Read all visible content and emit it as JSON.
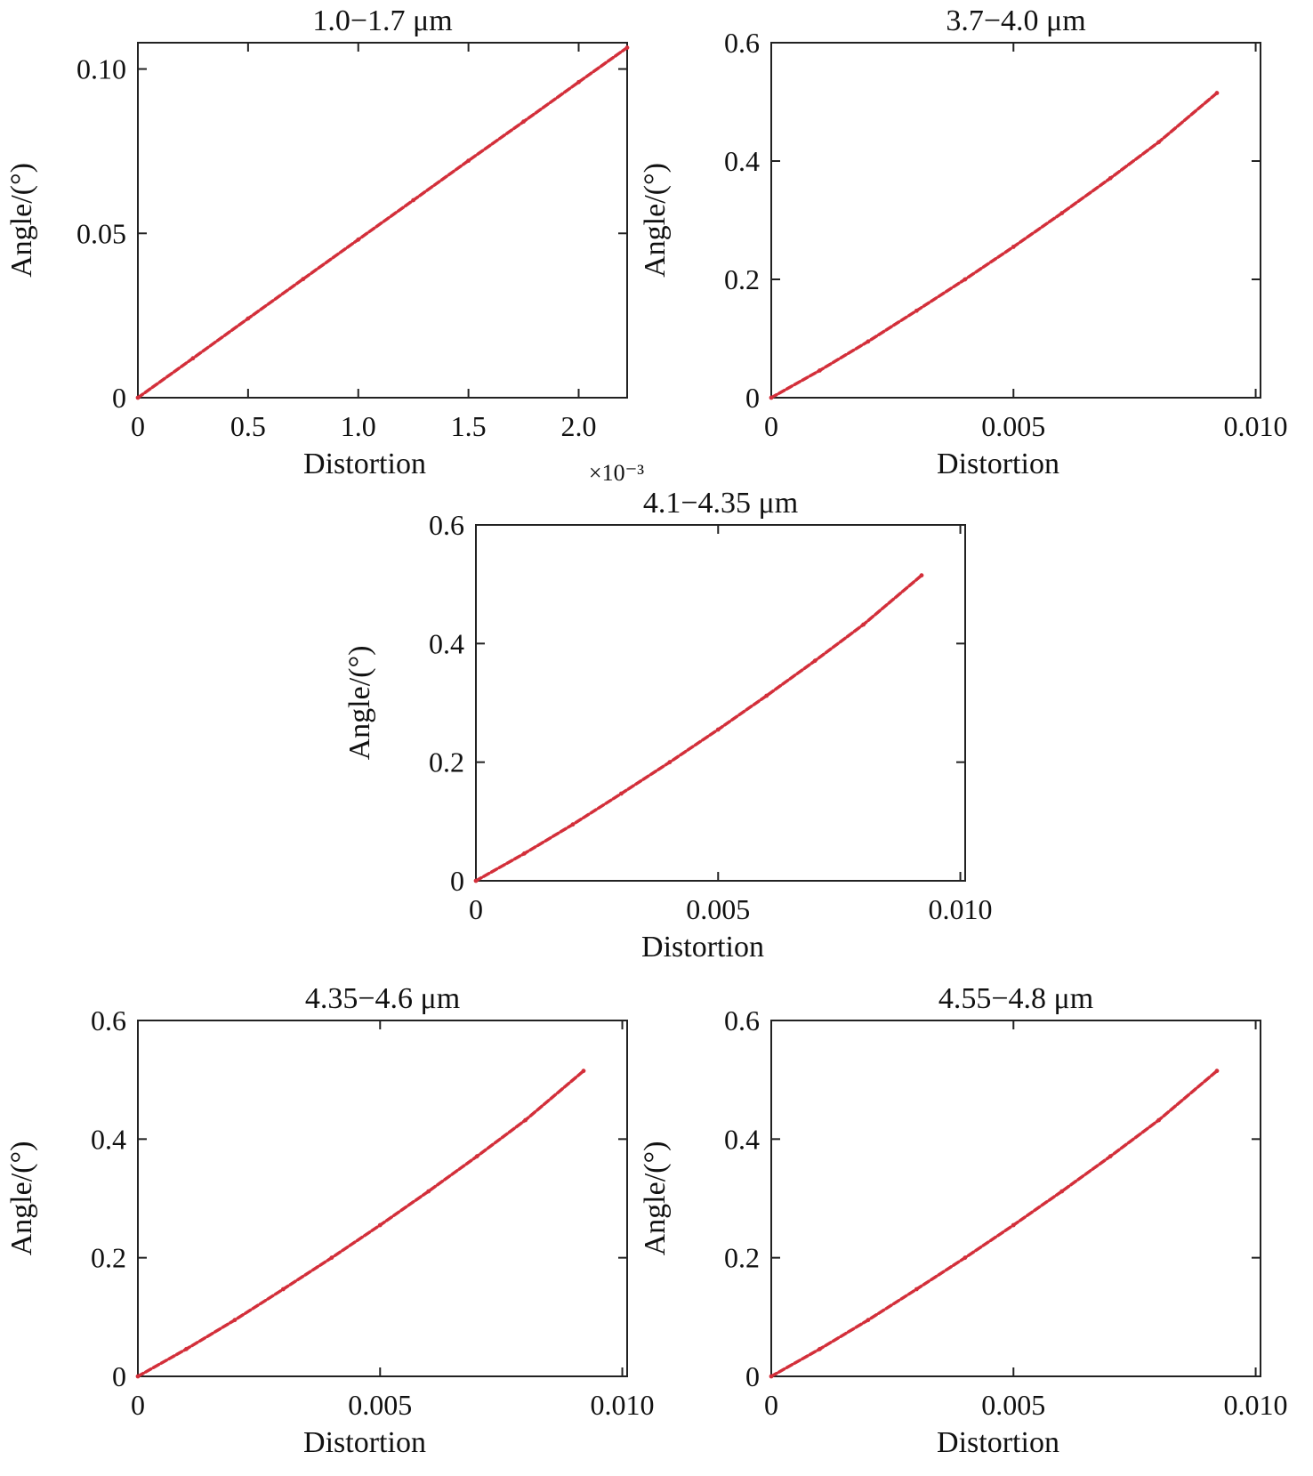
{
  "colors": {
    "series": "#d32f3a",
    "axis": "#222222",
    "text": "#111111"
  },
  "chart_data": [
    {
      "type": "line",
      "title": "1.0−1.7 μm",
      "xlabel": "Distortion",
      "ylabel": "Angle/(°)",
      "x_exponent_label": "×10⁻³",
      "xlim": [
        0,
        2.22
      ],
      "ylim": [
        0,
        0.108
      ],
      "xticks": [
        0,
        0.5,
        1.0,
        1.5,
        2.0
      ],
      "xtick_labels": [
        "0",
        "0.5",
        "1.0",
        "1.5",
        "2.0"
      ],
      "yticks": [
        0,
        0.05,
        0.1
      ],
      "ytick_labels": [
        "0",
        "0.05",
        "0.10"
      ],
      "series": [
        {
          "x": [
            0,
            0.25,
            0.5,
            0.75,
            1.0,
            1.25,
            1.5,
            1.75,
            2.0,
            2.22
          ],
          "y": [
            0,
            0.012,
            0.0241,
            0.0361,
            0.0481,
            0.0601,
            0.0721,
            0.084,
            0.096,
            0.1065
          ]
        }
      ]
    },
    {
      "type": "line",
      "title": "3.7−4.0 μm",
      "xlabel": "Distortion",
      "ylabel": "Angle/(°)",
      "xlim": [
        0,
        0.0101
      ],
      "ylim": [
        0,
        0.6
      ],
      "xticks": [
        0,
        0.005,
        0.01
      ],
      "xtick_labels": [
        "0",
        "0.005",
        "0.010"
      ],
      "yticks": [
        0,
        0.2,
        0.4,
        0.6
      ],
      "ytick_labels": [
        "0",
        "0.2",
        "0.4",
        "0.6"
      ],
      "series": [
        {
          "x": [
            0,
            0.001,
            0.002,
            0.003,
            0.004,
            0.005,
            0.006,
            0.007,
            0.008,
            0.0092
          ],
          "y": [
            0,
            0.046,
            0.095,
            0.147,
            0.2,
            0.255,
            0.312,
            0.371,
            0.432,
            0.515
          ]
        }
      ]
    },
    {
      "type": "line",
      "title": "4.1−4.35 μm",
      "xlabel": "Distortion",
      "ylabel": "Angle/(°)",
      "xlim": [
        0,
        0.0101
      ],
      "ylim": [
        0,
        0.6
      ],
      "xticks": [
        0,
        0.005,
        0.01
      ],
      "xtick_labels": [
        "0",
        "0.005",
        "0.010"
      ],
      "yticks": [
        0,
        0.2,
        0.4,
        0.6
      ],
      "ytick_labels": [
        "0",
        "0.2",
        "0.4",
        "0.6"
      ],
      "series": [
        {
          "x": [
            0,
            0.001,
            0.002,
            0.003,
            0.004,
            0.005,
            0.006,
            0.007,
            0.008,
            0.0092
          ],
          "y": [
            0,
            0.046,
            0.095,
            0.147,
            0.2,
            0.255,
            0.312,
            0.371,
            0.432,
            0.515
          ]
        }
      ]
    },
    {
      "type": "line",
      "title": "4.35−4.6 μm",
      "xlabel": "Distortion",
      "ylabel": "Angle/(°)",
      "xlim": [
        0,
        0.0101
      ],
      "ylim": [
        0,
        0.6
      ],
      "xticks": [
        0,
        0.005,
        0.01
      ],
      "xtick_labels": [
        "0",
        "0.005",
        "0.010"
      ],
      "yticks": [
        0,
        0.2,
        0.4,
        0.6
      ],
      "ytick_labels": [
        "0",
        "0.2",
        "0.4",
        "0.6"
      ],
      "series": [
        {
          "x": [
            0,
            0.001,
            0.002,
            0.003,
            0.004,
            0.005,
            0.006,
            0.007,
            0.008,
            0.0092
          ],
          "y": [
            0,
            0.046,
            0.095,
            0.147,
            0.2,
            0.255,
            0.312,
            0.371,
            0.432,
            0.515
          ]
        }
      ]
    },
    {
      "type": "line",
      "title": "4.55−4.8 μm",
      "xlabel": "Distortion",
      "ylabel": "Angle/(°)",
      "xlim": [
        0,
        0.0101
      ],
      "ylim": [
        0,
        0.6
      ],
      "xticks": [
        0,
        0.005,
        0.01
      ],
      "xtick_labels": [
        "0",
        "0.005",
        "0.010"
      ],
      "yticks": [
        0,
        0.2,
        0.4,
        0.6
      ],
      "ytick_labels": [
        "0",
        "0.2",
        "0.4",
        "0.6"
      ],
      "series": [
        {
          "x": [
            0,
            0.001,
            0.002,
            0.003,
            0.004,
            0.005,
            0.006,
            0.007,
            0.008,
            0.0092
          ],
          "y": [
            0,
            0.046,
            0.095,
            0.147,
            0.2,
            0.255,
            0.312,
            0.371,
            0.432,
            0.515
          ]
        }
      ]
    }
  ]
}
